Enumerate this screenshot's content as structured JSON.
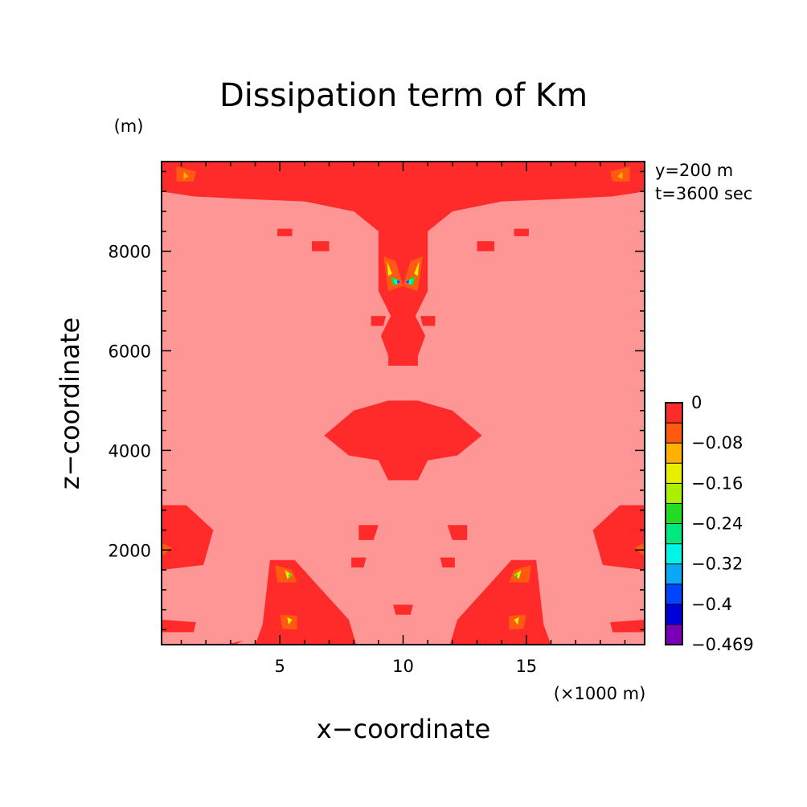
{
  "chart_data": {
    "type": "heatmap",
    "title": "Dissipation term of Km",
    "xlabel": "x−coordinate",
    "ylabel": "z−coordinate",
    "x_unit": "(×1000 m)",
    "y_unit": "(m)",
    "annotations": [
      "y=200 m",
      "t=3600 sec"
    ],
    "xlim": [
      0.2,
      19.8
    ],
    "ylim": [
      100,
      9800
    ],
    "xticks": [
      5,
      10,
      15
    ],
    "xtick_labels": [
      "5",
      "10",
      "15"
    ],
    "yticks": [
      2000,
      4000,
      6000,
      8000
    ],
    "ytick_labels": [
      "2000",
      "4000",
      "6000",
      "8000"
    ],
    "grid": false,
    "legend": "right",
    "colorbar": {
      "levels": [
        0,
        -0.04,
        -0.08,
        -0.12,
        -0.16,
        -0.2,
        -0.24,
        -0.28,
        -0.32,
        -0.36,
        -0.4,
        -0.44,
        -0.469
      ],
      "labels": [
        "0",
        "−0.08",
        "−0.16",
        "−0.24",
        "−0.32",
        "−0.4",
        "−0.469"
      ],
      "colors": [
        "#ff2a2a",
        "#ff5a10",
        "#ffb000",
        "#e8ee00",
        "#aaf000",
        "#22dc22",
        "#00e880",
        "#00f5e6",
        "#0aa8f5",
        "#0044ff",
        "#0000d8",
        "#7a00b8"
      ]
    },
    "background_color": "#ff9696",
    "regions": [
      {
        "value": -0.02,
        "points": [
          [
            0.2,
            9800
          ],
          [
            19.8,
            9800
          ],
          [
            19.8,
            9200
          ],
          [
            18.5,
            9100
          ],
          [
            16.5,
            9050
          ],
          [
            14,
            9000
          ],
          [
            12,
            8800
          ],
          [
            11,
            8400
          ],
          [
            11,
            7200
          ],
          [
            10.5,
            6700
          ],
          [
            10.9,
            6300
          ],
          [
            10.6,
            5900
          ],
          [
            10.6,
            5700
          ],
          [
            9.4,
            5700
          ],
          [
            9.4,
            5900
          ],
          [
            9.1,
            6300
          ],
          [
            9.5,
            6700
          ],
          [
            9,
            7200
          ],
          [
            9,
            8400
          ],
          [
            8,
            8800
          ],
          [
            6,
            9000
          ],
          [
            3.5,
            9050
          ],
          [
            1.5,
            9100
          ],
          [
            0.2,
            9200
          ]
        ]
      },
      {
        "value": -0.02,
        "points": [
          [
            9.4,
            5000
          ],
          [
            10.6,
            5000
          ],
          [
            12,
            4800
          ],
          [
            13.2,
            4300
          ],
          [
            12.2,
            3900
          ],
          [
            11,
            3800
          ],
          [
            10.6,
            3400
          ],
          [
            9.4,
            3400
          ],
          [
            9,
            3800
          ],
          [
            7.8,
            3900
          ],
          [
            6.8,
            4300
          ],
          [
            8,
            4800
          ]
        ]
      },
      {
        "value": -0.02,
        "points": [
          [
            0.2,
            2900
          ],
          [
            1.2,
            2900
          ],
          [
            2.3,
            2400
          ],
          [
            1.9,
            1700
          ],
          [
            0.2,
            1600
          ]
        ]
      },
      {
        "value": -0.02,
        "points": [
          [
            19.8,
            2900
          ],
          [
            18.8,
            2900
          ],
          [
            17.7,
            2400
          ],
          [
            18.1,
            1700
          ],
          [
            19.8,
            1600
          ]
        ]
      },
      {
        "value": -0.02,
        "points": [
          [
            4.6,
            1800
          ],
          [
            5.6,
            1800
          ],
          [
            7.8,
            600
          ],
          [
            8.1,
            100
          ],
          [
            4,
            100
          ],
          [
            4.3,
            500
          ]
        ]
      },
      {
        "value": -0.02,
        "points": [
          [
            15.4,
            1800
          ],
          [
            14.4,
            1800
          ],
          [
            12.2,
            600
          ],
          [
            11.9,
            100
          ],
          [
            16,
            100
          ],
          [
            15.7,
            500
          ]
        ]
      },
      {
        "value": -0.02,
        "points": [
          [
            0.2,
            600
          ],
          [
            1.6,
            550
          ],
          [
            1.5,
            350
          ],
          [
            0.2,
            350
          ]
        ]
      },
      {
        "value": -0.02,
        "points": [
          [
            19.8,
            600
          ],
          [
            18.4,
            550
          ],
          [
            18.5,
            350
          ],
          [
            19.8,
            350
          ]
        ]
      },
      {
        "value": -0.02,
        "points": [
          [
            2.8,
            100
          ],
          [
            3.5,
            180
          ],
          [
            3.2,
            100
          ]
        ]
      },
      {
        "value": -0.02,
        "points": [
          [
            8.2,
            2500
          ],
          [
            9,
            2500
          ],
          [
            8.8,
            2200
          ],
          [
            8.2,
            2200
          ]
        ]
      },
      {
        "value": -0.02,
        "points": [
          [
            11.8,
            2500
          ],
          [
            12.6,
            2500
          ],
          [
            12.6,
            2200
          ],
          [
            12,
            2200
          ]
        ]
      },
      {
        "value": -0.02,
        "points": [
          [
            9.6,
            900
          ],
          [
            10.4,
            900
          ],
          [
            10.3,
            700
          ],
          [
            9.7,
            700
          ]
        ]
      },
      {
        "value": -0.02,
        "points": [
          [
            7.9,
            1850
          ],
          [
            8.5,
            1850
          ],
          [
            8.4,
            1650
          ],
          [
            7.9,
            1650
          ]
        ]
      },
      {
        "value": -0.02,
        "points": [
          [
            11.5,
            1850
          ],
          [
            12.1,
            1850
          ],
          [
            12.1,
            1650
          ],
          [
            11.6,
            1650
          ]
        ]
      },
      {
        "value": -0.02,
        "points": [
          [
            4.9,
            8450
          ],
          [
            5.5,
            8450
          ],
          [
            5.5,
            8300
          ],
          [
            4.9,
            8300
          ]
        ]
      },
      {
        "value": -0.02,
        "points": [
          [
            14.5,
            8450
          ],
          [
            15.1,
            8450
          ],
          [
            15.1,
            8300
          ],
          [
            14.5,
            8300
          ]
        ]
      },
      {
        "value": -0.02,
        "points": [
          [
            6.3,
            8200
          ],
          [
            7,
            8200
          ],
          [
            7,
            8000
          ],
          [
            6.3,
            8000
          ]
        ]
      },
      {
        "value": -0.02,
        "points": [
          [
            13,
            8200
          ],
          [
            13.7,
            8200
          ],
          [
            13.7,
            8000
          ],
          [
            13,
            8000
          ]
        ]
      },
      {
        "value": -0.02,
        "points": [
          [
            8.7,
            6700
          ],
          [
            9.3,
            6700
          ],
          [
            9.2,
            6500
          ],
          [
            8.7,
            6500
          ]
        ]
      },
      {
        "value": -0.02,
        "points": [
          [
            10.7,
            6700
          ],
          [
            11.3,
            6700
          ],
          [
            11.3,
            6500
          ],
          [
            10.8,
            6500
          ]
        ]
      },
      {
        "value": -0.06,
        "points": [
          [
            0.8,
            9700
          ],
          [
            1.6,
            9600
          ],
          [
            1.5,
            9400
          ],
          [
            0.8,
            9400
          ]
        ]
      },
      {
        "value": -0.06,
        "points": [
          [
            19.2,
            9700
          ],
          [
            18.4,
            9600
          ],
          [
            18.5,
            9400
          ],
          [
            19.2,
            9400
          ]
        ]
      },
      {
        "value": -0.06,
        "points": [
          [
            9.2,
            7900
          ],
          [
            9.7,
            7800
          ],
          [
            10,
            7300
          ],
          [
            9.4,
            7200
          ]
        ]
      },
      {
        "value": -0.06,
        "points": [
          [
            10.8,
            7900
          ],
          [
            10.3,
            7800
          ],
          [
            10,
            7300
          ],
          [
            10.6,
            7200
          ]
        ]
      },
      {
        "value": -0.06,
        "points": [
          [
            4.8,
            1700
          ],
          [
            5.5,
            1600
          ],
          [
            5.7,
            1350
          ],
          [
            4.9,
            1350
          ]
        ]
      },
      {
        "value": -0.06,
        "points": [
          [
            15.2,
            1700
          ],
          [
            14.5,
            1600
          ],
          [
            14.3,
            1350
          ],
          [
            15.1,
            1350
          ]
        ]
      },
      {
        "value": -0.06,
        "points": [
          [
            5,
            700
          ],
          [
            5.7,
            680
          ],
          [
            5.7,
            400
          ],
          [
            5.1,
            420
          ]
        ]
      },
      {
        "value": -0.06,
        "points": [
          [
            15,
            700
          ],
          [
            14.3,
            680
          ],
          [
            14.3,
            400
          ],
          [
            14.9,
            420
          ]
        ]
      },
      {
        "value": -0.06,
        "points": [
          [
            0.2,
            2150
          ],
          [
            0.6,
            2050
          ],
          [
            0.3,
            1900
          ],
          [
            0.2,
            1900
          ]
        ]
      },
      {
        "value": -0.06,
        "points": [
          [
            19.8,
            2150
          ],
          [
            19.4,
            2050
          ],
          [
            19.7,
            1900
          ],
          [
            19.8,
            1900
          ]
        ]
      },
      {
        "value": -0.12,
        "points": [
          [
            1.1,
            9600
          ],
          [
            1.3,
            9500
          ],
          [
            1.1,
            9450
          ]
        ]
      },
      {
        "value": -0.12,
        "points": [
          [
            18.9,
            9600
          ],
          [
            18.7,
            9500
          ],
          [
            18.9,
            9450
          ]
        ]
      },
      {
        "value": -0.16,
        "points": [
          [
            9.35,
            7800
          ],
          [
            9.55,
            7550
          ],
          [
            9.4,
            7500
          ]
        ]
      },
      {
        "value": -0.16,
        "points": [
          [
            10.65,
            7800
          ],
          [
            10.45,
            7550
          ],
          [
            10.6,
            7500
          ]
        ]
      },
      {
        "value": -0.16,
        "points": [
          [
            5.2,
            1600
          ],
          [
            5.5,
            1500
          ],
          [
            5.3,
            1420
          ]
        ]
      },
      {
        "value": -0.16,
        "points": [
          [
            14.8,
            1600
          ],
          [
            14.5,
            1500
          ],
          [
            14.7,
            1420
          ]
        ]
      },
      {
        "value": -0.16,
        "points": [
          [
            5.3,
            650
          ],
          [
            5.5,
            600
          ],
          [
            5.35,
            500
          ]
        ]
      },
      {
        "value": -0.16,
        "points": [
          [
            14.7,
            650
          ],
          [
            14.5,
            600
          ],
          [
            14.65,
            500
          ]
        ]
      },
      {
        "value": -0.22,
        "points": [
          [
            9.5,
            7500
          ],
          [
            9.8,
            7420
          ],
          [
            9.6,
            7300
          ]
        ]
      },
      {
        "value": -0.22,
        "points": [
          [
            10.5,
            7500
          ],
          [
            10.2,
            7420
          ],
          [
            10.4,
            7300
          ]
        ]
      },
      {
        "value": -0.22,
        "points": [
          [
            5.35,
            1530
          ],
          [
            5.5,
            1480
          ],
          [
            5.38,
            1440
          ]
        ]
      },
      {
        "value": -0.22,
        "points": [
          [
            14.65,
            1530
          ],
          [
            14.5,
            1480
          ],
          [
            14.62,
            1440
          ]
        ]
      },
      {
        "value": -0.3,
        "points": [
          [
            9.6,
            7450
          ],
          [
            9.9,
            7400
          ],
          [
            9.7,
            7320
          ]
        ]
      },
      {
        "value": -0.3,
        "points": [
          [
            10.4,
            7450
          ],
          [
            10.1,
            7400
          ],
          [
            10.3,
            7320
          ]
        ]
      },
      {
        "value": -0.4,
        "points": [
          [
            9.75,
            7420
          ],
          [
            9.9,
            7390
          ],
          [
            9.78,
            7350
          ]
        ]
      },
      {
        "value": -0.4,
        "points": [
          [
            10.25,
            7420
          ],
          [
            10.1,
            7390
          ],
          [
            10.22,
            7350
          ]
        ]
      }
    ]
  }
}
